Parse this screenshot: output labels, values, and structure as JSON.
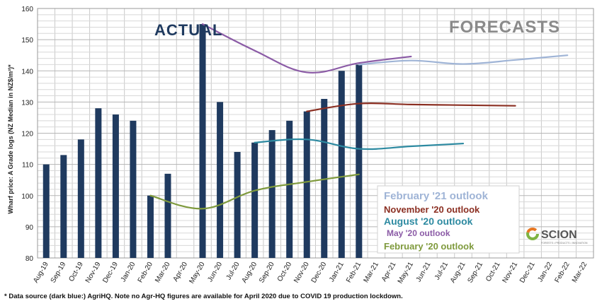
{
  "chart_data": {
    "type": "bar",
    "ylabel": "Wharf price: A Grade logs (NZ Median in NZ$/m³)*",
    "ylim": [
      80,
      160
    ],
    "yticks": [
      80,
      90,
      100,
      110,
      120,
      130,
      140,
      150,
      160
    ],
    "grid": true,
    "categories": [
      "Aug-19",
      "Sep-19",
      "Oct-19",
      "Nov-19",
      "Dec-19",
      "Jan-20",
      "Feb-20",
      "Mar-20",
      "Apr-20",
      "May-20",
      "Jun-20",
      "Jul-20",
      "Aug-20",
      "Sep-20",
      "Oct-20",
      "Nov-20",
      "Dec-20",
      "Jan-21",
      "Feb-21",
      "Mar-21",
      "Apr-21",
      "May-21",
      "Jun-21",
      "Jul-21",
      "Aug-21",
      "Sep-21",
      "Oct-21",
      "Nov-21",
      "Dec-21",
      "Jan-22",
      "Feb-22",
      "Mar-22"
    ],
    "actual": {
      "name": "ACTUAL",
      "color": "#1f3a5f",
      "values": [
        110,
        113,
        118,
        128,
        126,
        124,
        100,
        107,
        null,
        155,
        130,
        114,
        117,
        121,
        124,
        127,
        131,
        140,
        142,
        null,
        null,
        null,
        null,
        null,
        null,
        null,
        null,
        null,
        null,
        null,
        null,
        null
      ]
    },
    "series": [
      {
        "name": "February '21 outlook",
        "color": "#9fb4d6",
        "values": [
          [
            18,
            142
          ],
          [
            21,
            143.3
          ],
          [
            24,
            142.2
          ],
          [
            27,
            143.5
          ],
          [
            30,
            145
          ]
        ]
      },
      {
        "name": "November '20 outlook",
        "color": "#8b2f22",
        "values": [
          [
            15,
            127
          ],
          [
            18,
            129.5
          ],
          [
            21,
            129.2
          ],
          [
            24,
            129
          ],
          [
            27,
            128.8
          ]
        ]
      },
      {
        "name": "August '20 outlook",
        "color": "#2d8aa1",
        "values": [
          [
            12,
            117
          ],
          [
            15,
            118
          ],
          [
            18,
            115
          ],
          [
            21,
            115.8
          ],
          [
            24,
            116.7
          ]
        ]
      },
      {
        "name": "May '20 outlook",
        "color": "#8b5ba6",
        "values": [
          [
            9,
            155
          ],
          [
            12,
            146.5
          ],
          [
            15,
            139.5
          ],
          [
            18,
            142.5
          ],
          [
            21,
            144.6
          ]
        ]
      },
      {
        "name": "February '20 outlook",
        "color": "#7f9a3d",
        "values": [
          [
            6,
            100
          ],
          [
            9,
            95.8
          ],
          [
            12,
            101.6
          ],
          [
            15,
            104.4
          ],
          [
            18,
            106.8
          ]
        ]
      }
    ],
    "section_labels": {
      "actual": "ACTUAL",
      "forecasts": "FORECASTS"
    }
  },
  "legend": {
    "entries": [
      {
        "text": "February '21 outlook",
        "color": "#9fb4d6"
      },
      {
        "text": "November '20 outlook",
        "color": "#8b2f22"
      },
      {
        "text": "August '20 outlook",
        "color": "#2d8aa1"
      },
      {
        "text": "May '20 outlook",
        "color": "#8b5ba6"
      },
      {
        "text": "February '20 outlook",
        "color": "#7f9a3d"
      }
    ]
  },
  "logo": {
    "name": "SCION",
    "tagline": "FORESTS • PRODUCTS • INNOVATION"
  },
  "footnote": "* Data source (dark blue:) AgriHQ. Note no Agr-HQ figures are available for April 2020 due to COVID 19 production lockdown."
}
